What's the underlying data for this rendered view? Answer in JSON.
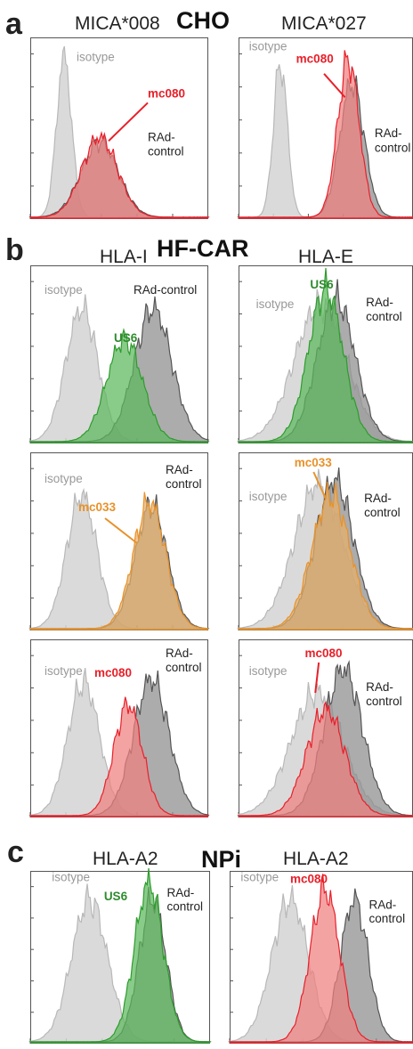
{
  "figure": {
    "panel_letters": {
      "a": "a",
      "b": "b",
      "c": "c"
    },
    "section_titles": {
      "a": "CHO",
      "b": "HF-CAR",
      "c": "NPi"
    },
    "column_titles": {
      "a": [
        "MICA*008",
        "MICA*027"
      ],
      "b": [
        "HLA-I",
        "HLA-E"
      ],
      "c": [
        "HLA-A2",
        "HLA-A2"
      ]
    }
  },
  "colors": {
    "isotype": "#d4d4d4",
    "isotype_line": "#b8b8b8",
    "control": "#8c8c8c",
    "control_line": "#555555",
    "red": "#f08080",
    "red_line": "#e8202a",
    "red_text": "#e8202a",
    "green": "#5cb85c",
    "green_line": "#2e9b2e",
    "green_text": "#2e8b2e",
    "orange": "#e8b06a",
    "orange_line": "#e8922a",
    "orange_text": "#e8922a",
    "gray_text": "#999999",
    "dark_text": "#222222"
  },
  "chart_data": [
    {
      "type": "area",
      "panel": "a",
      "title": "MICA*008",
      "xscale": "log",
      "xlim": [
        0,
        1
      ],
      "ylim": [
        0,
        1
      ],
      "series": [
        {
          "name": "isotype",
          "color": "isotype",
          "mu": 0.19,
          "sigma": 0.042,
          "height": 0.92
        },
        {
          "name": "RAd-control",
          "color": "control",
          "mu": 0.39,
          "sigma": 0.105,
          "height": 0.43
        },
        {
          "name": "mc080",
          "color": "red",
          "mu": 0.39,
          "sigma": 0.1,
          "height": 0.46
        }
      ],
      "labels": [
        {
          "text": "isotype",
          "color": "gray_text",
          "bold": false
        },
        {
          "text": "mc080",
          "color": "red_text",
          "bold": true
        },
        {
          "text": "RAd-",
          "color": "dark_text",
          "bold": false
        },
        {
          "text": "control",
          "color": "dark_text",
          "bold": false
        }
      ]
    },
    {
      "type": "area",
      "panel": "a",
      "title": "MICA*027",
      "xscale": "log",
      "xlim": [
        0,
        1
      ],
      "ylim": [
        0,
        1
      ],
      "series": [
        {
          "name": "isotype",
          "color": "isotype",
          "mu": 0.24,
          "sigma": 0.04,
          "height": 0.88
        },
        {
          "name": "RAd-control",
          "color": "control",
          "mu": 0.65,
          "sigma": 0.07,
          "height": 0.77
        },
        {
          "name": "mc080",
          "color": "red",
          "mu": 0.63,
          "sigma": 0.062,
          "height": 0.9
        }
      ],
      "labels": [
        {
          "text": "isotype",
          "color": "gray_text",
          "bold": false
        },
        {
          "text": "mc080",
          "color": "red_text",
          "bold": true
        },
        {
          "text": "RAd-",
          "color": "dark_text",
          "bold": false
        },
        {
          "text": "control",
          "color": "dark_text",
          "bold": false
        }
      ]
    },
    {
      "type": "area",
      "panel": "b",
      "title": "HLA-I",
      "xscale": "log",
      "xlim": [
        0,
        1
      ],
      "ylim": [
        0,
        1
      ],
      "series": [
        {
          "name": "isotype",
          "color": "isotype",
          "mu": 0.29,
          "sigma": 0.09,
          "height": 0.78
        },
        {
          "name": "RAd-control",
          "color": "control",
          "mu": 0.69,
          "sigma": 0.105,
          "height": 0.78
        },
        {
          "name": "US6",
          "color": "green",
          "mu": 0.53,
          "sigma": 0.1,
          "height": 0.6
        }
      ],
      "labels": [
        {
          "text": "isotype",
          "color": "gray_text",
          "bold": false
        },
        {
          "text": "RAd-control",
          "color": "dark_text",
          "bold": false
        },
        {
          "text": "US6",
          "color": "green_text",
          "bold": true
        }
      ]
    },
    {
      "type": "area",
      "panel": "b",
      "title": "HLA-E",
      "xscale": "log",
      "xlim": [
        0,
        1
      ],
      "ylim": [
        0,
        1
      ],
      "series": [
        {
          "name": "isotype",
          "color": "isotype",
          "mu": 0.47,
          "sigma": 0.15,
          "height": 0.8
        },
        {
          "name": "RAd-control",
          "color": "control",
          "mu": 0.56,
          "sigma": 0.11,
          "height": 0.83
        },
        {
          "name": "US6",
          "color": "green",
          "mu": 0.5,
          "sigma": 0.1,
          "height": 0.89
        }
      ],
      "labels": [
        {
          "text": "isotype",
          "color": "gray_text",
          "bold": false
        },
        {
          "text": "US6",
          "color": "green_text",
          "bold": true
        },
        {
          "text": "RAd-",
          "color": "dark_text",
          "bold": false
        },
        {
          "text": "control",
          "color": "dark_text",
          "bold": false
        }
      ]
    },
    {
      "type": "area",
      "panel": "b",
      "title": "HLA-I",
      "xscale": "log",
      "xlim": [
        0,
        1
      ],
      "ylim": [
        0,
        1
      ],
      "series": [
        {
          "name": "isotype",
          "color": "isotype",
          "mu": 0.29,
          "sigma": 0.085,
          "height": 0.78
        },
        {
          "name": "RAd-control",
          "color": "control",
          "mu": 0.68,
          "sigma": 0.09,
          "height": 0.72
        },
        {
          "name": "mc033",
          "color": "orange",
          "mu": 0.67,
          "sigma": 0.09,
          "height": 0.74
        }
      ],
      "labels": [
        {
          "text": "isotype",
          "color": "gray_text",
          "bold": false
        },
        {
          "text": "mc033",
          "color": "orange_text",
          "bold": true
        },
        {
          "text": "RAd-",
          "color": "dark_text",
          "bold": false
        },
        {
          "text": "control",
          "color": "dark_text",
          "bold": false
        }
      ]
    },
    {
      "type": "area",
      "panel": "b",
      "title": "HLA-E",
      "xscale": "log",
      "xlim": [
        0,
        1
      ],
      "ylim": [
        0,
        1
      ],
      "series": [
        {
          "name": "isotype",
          "color": "isotype",
          "mu": 0.46,
          "sigma": 0.14,
          "height": 0.85
        },
        {
          "name": "RAd-control",
          "color": "control",
          "mu": 0.55,
          "sigma": 0.11,
          "height": 0.87
        },
        {
          "name": "mc033",
          "color": "orange",
          "mu": 0.53,
          "sigma": 0.11,
          "height": 0.78
        }
      ],
      "labels": [
        {
          "text": "isotype",
          "color": "gray_text",
          "bold": false
        },
        {
          "text": "mc033",
          "color": "orange_text",
          "bold": true
        },
        {
          "text": "RAd-",
          "color": "dark_text",
          "bold": false
        },
        {
          "text": "control",
          "color": "dark_text",
          "bold": false
        }
      ]
    },
    {
      "type": "area",
      "panel": "b",
      "title": "HLA-I",
      "xscale": "log",
      "xlim": [
        0,
        1
      ],
      "ylim": [
        0,
        1
      ],
      "series": [
        {
          "name": "isotype",
          "color": "isotype",
          "mu": 0.3,
          "sigma": 0.09,
          "height": 0.78
        },
        {
          "name": "RAd-control",
          "color": "control",
          "mu": 0.68,
          "sigma": 0.1,
          "height": 0.8
        },
        {
          "name": "mc080",
          "color": "red",
          "mu": 0.55,
          "sigma": 0.08,
          "height": 0.65
        }
      ],
      "labels": [
        {
          "text": "isotype",
          "color": "gray_text",
          "bold": false
        },
        {
          "text": "mc080",
          "color": "red_text",
          "bold": true
        },
        {
          "text": "RAd-",
          "color": "dark_text",
          "bold": false
        },
        {
          "text": "control",
          "color": "dark_text",
          "bold": false
        }
      ]
    },
    {
      "type": "area",
      "panel": "b",
      "title": "HLA-E",
      "xscale": "log",
      "xlim": [
        0,
        1
      ],
      "ylim": [
        0,
        1
      ],
      "series": [
        {
          "name": "isotype",
          "color": "isotype",
          "mu": 0.45,
          "sigma": 0.15,
          "height": 0.72
        },
        {
          "name": "RAd-control",
          "color": "control",
          "mu": 0.6,
          "sigma": 0.11,
          "height": 0.86
        },
        {
          "name": "mc080",
          "color": "red",
          "mu": 0.5,
          "sigma": 0.11,
          "height": 0.62
        }
      ],
      "labels": [
        {
          "text": "isotype",
          "color": "gray_text",
          "bold": false
        },
        {
          "text": "mc080",
          "color": "red_text",
          "bold": true
        },
        {
          "text": "RAd-",
          "color": "dark_text",
          "bold": false
        },
        {
          "text": "control",
          "color": "dark_text",
          "bold": false
        }
      ]
    },
    {
      "type": "area",
      "panel": "c",
      "title": "HLA-A2",
      "xscale": "log",
      "xlim": [
        0,
        1
      ],
      "ylim": [
        0,
        1
      ],
      "series": [
        {
          "name": "isotype",
          "color": "isotype",
          "mu": 0.33,
          "sigma": 0.1,
          "height": 0.86
        },
        {
          "name": "RAd-control",
          "color": "control",
          "mu": 0.68,
          "sigma": 0.075,
          "height": 0.86
        },
        {
          "name": "US6",
          "color": "green",
          "mu": 0.66,
          "sigma": 0.08,
          "height": 0.96
        }
      ],
      "labels": [
        {
          "text": "isotype",
          "color": "gray_text",
          "bold": false
        },
        {
          "text": "US6",
          "color": "green_text",
          "bold": true
        },
        {
          "text": "RAd-",
          "color": "dark_text",
          "bold": false
        },
        {
          "text": "control",
          "color": "dark_text",
          "bold": false
        }
      ]
    },
    {
      "type": "area",
      "panel": "c",
      "title": "HLA-A2",
      "xscale": "log",
      "xlim": [
        0,
        1
      ],
      "ylim": [
        0,
        1
      ],
      "series": [
        {
          "name": "isotype",
          "color": "isotype",
          "mu": 0.33,
          "sigma": 0.1,
          "height": 0.86
        },
        {
          "name": "RAd-control",
          "color": "control",
          "mu": 0.68,
          "sigma": 0.075,
          "height": 0.86
        },
        {
          "name": "mc080",
          "color": "red",
          "mu": 0.52,
          "sigma": 0.08,
          "height": 0.92
        }
      ],
      "labels": [
        {
          "text": "isotype",
          "color": "gray_text",
          "bold": false
        },
        {
          "text": "mc080",
          "color": "red_text",
          "bold": true
        },
        {
          "text": "RAd-",
          "color": "dark_text",
          "bold": false
        },
        {
          "text": "control",
          "color": "dark_text",
          "bold": false
        }
      ]
    }
  ]
}
